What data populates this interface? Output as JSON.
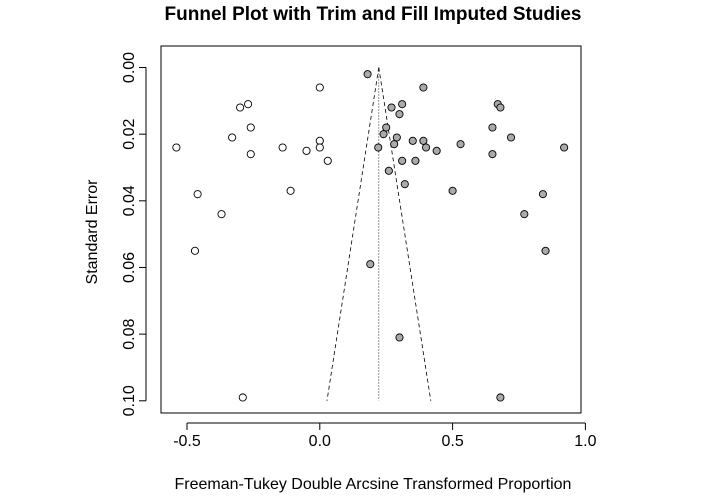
{
  "chart_data": {
    "type": "scatter",
    "title": "Funnel Plot with Trim and Fill Imputed Studies",
    "xlabel": "Freeman-Tukey Double Arcsine Transformed Proportion",
    "ylabel": "Standard Error",
    "xlim": [
      -0.6,
      1.0
    ],
    "ylim": [
      0.1,
      0.0
    ],
    "y_reversed": true,
    "x_ticks": [
      -0.5,
      0.0,
      0.5,
      1.0
    ],
    "x_tick_labels": [
      "-0.5",
      "0.0",
      "0.5",
      "1.0"
    ],
    "y_ticks": [
      0.0,
      0.02,
      0.04,
      0.06,
      0.08,
      0.1
    ],
    "y_tick_labels": [
      "0.00",
      "0.02",
      "0.04",
      "0.06",
      "0.08",
      "0.10"
    ],
    "pooled_estimate": 0.222,
    "funnel_apex": [
      0.222,
      0.0
    ],
    "funnel_base_left": [
      0.027,
      0.1
    ],
    "funnel_base_right": [
      0.418,
      0.1
    ],
    "colors": {
      "observed_fill": "#aaaaaa",
      "imputed_fill": "#ffffff",
      "stroke": "#000000"
    },
    "series": [
      {
        "marker": "filled",
        "points": [
          [
            0.18,
            0.002
          ],
          [
            0.39,
            0.006
          ],
          [
            0.31,
            0.011
          ],
          [
            0.27,
            0.012
          ],
          [
            0.3,
            0.014
          ],
          [
            0.25,
            0.018
          ],
          [
            0.24,
            0.02
          ],
          [
            0.29,
            0.021
          ],
          [
            0.35,
            0.022
          ],
          [
            0.39,
            0.022
          ],
          [
            0.28,
            0.023
          ],
          [
            0.22,
            0.024
          ],
          [
            0.4,
            0.024
          ],
          [
            0.44,
            0.025
          ],
          [
            0.53,
            0.023
          ],
          [
            0.31,
            0.028
          ],
          [
            0.36,
            0.028
          ],
          [
            0.26,
            0.031
          ],
          [
            0.32,
            0.035
          ],
          [
            0.5,
            0.037
          ],
          [
            0.65,
            0.018
          ],
          [
            0.67,
            0.011
          ],
          [
            0.68,
            0.012
          ],
          [
            0.72,
            0.021
          ],
          [
            0.65,
            0.026
          ],
          [
            0.92,
            0.024
          ],
          [
            0.84,
            0.038
          ],
          [
            0.77,
            0.044
          ],
          [
            0.85,
            0.055
          ],
          [
            0.19,
            0.059
          ],
          [
            0.3,
            0.081
          ],
          [
            0.68,
            0.099
          ]
        ]
      },
      {
        "marker": "open",
        "points": [
          [
            -0.54,
            0.024
          ],
          [
            -0.3,
            0.012
          ],
          [
            -0.27,
            0.011
          ],
          [
            -0.33,
            0.021
          ],
          [
            -0.26,
            0.018
          ],
          [
            -0.26,
            0.026
          ],
          [
            0.0,
            0.006
          ],
          [
            -0.14,
            0.024
          ],
          [
            0.0,
            0.022
          ],
          [
            -0.05,
            0.025
          ],
          [
            0.0,
            0.024
          ],
          [
            0.03,
            0.028
          ],
          [
            -0.11,
            0.037
          ],
          [
            -0.46,
            0.038
          ],
          [
            -0.37,
            0.044
          ],
          [
            -0.47,
            0.055
          ],
          [
            -0.29,
            0.099
          ]
        ]
      }
    ]
  }
}
